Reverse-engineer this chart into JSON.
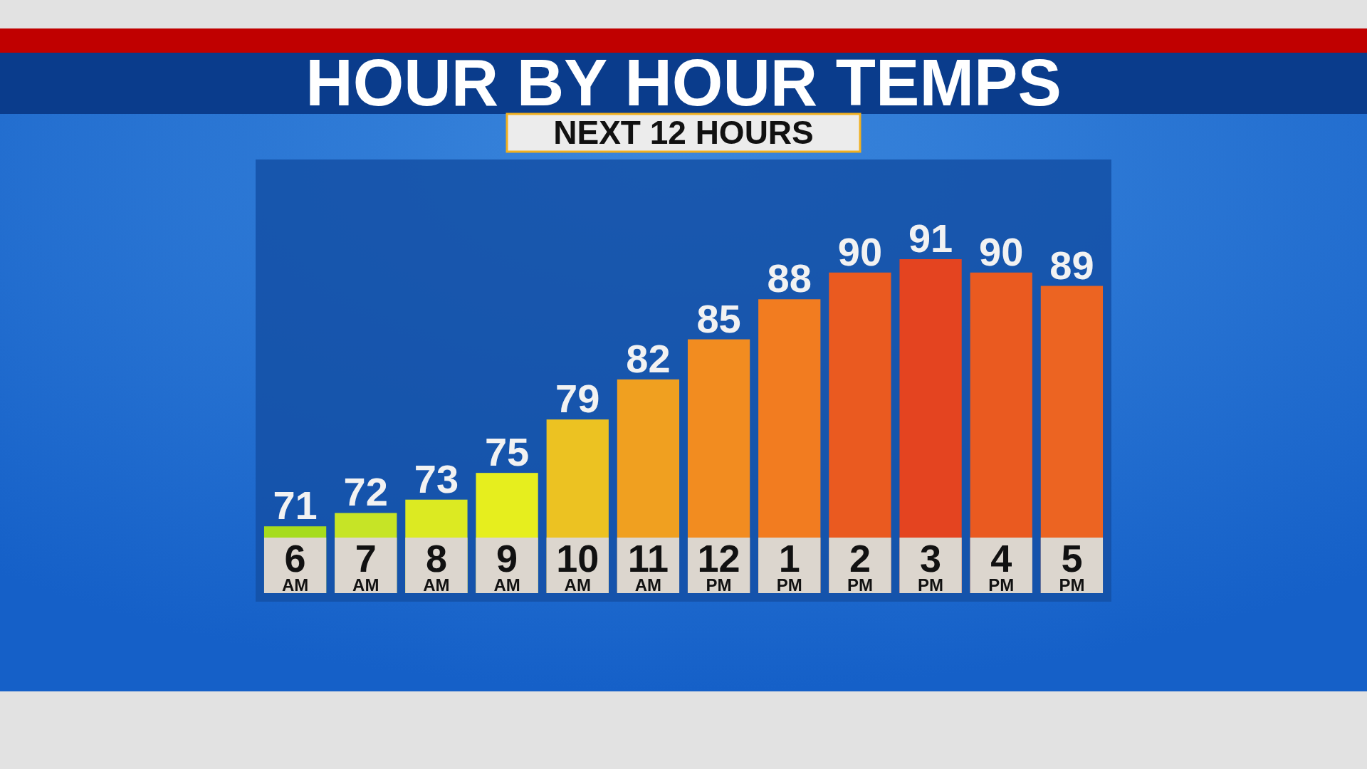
{
  "chart_data": {
    "type": "bar",
    "title": "HOUR BY HOUR TEMPS",
    "subtitle": "NEXT 12 HOURS",
    "categories": [
      "6 AM",
      "7 AM",
      "8 AM",
      "9 AM",
      "10 AM",
      "11 AM",
      "12 PM",
      "1 PM",
      "2 PM",
      "3 PM",
      "4 PM",
      "5 PM"
    ],
    "values": [
      71,
      72,
      73,
      75,
      79,
      82,
      85,
      88,
      90,
      91,
      90,
      89
    ],
    "colors": [
      "#a6dc1e",
      "#c6e426",
      "#dcea22",
      "#e6ee1e",
      "#ecc222",
      "#f0a020",
      "#f28c20",
      "#f27c20",
      "#ea5a20",
      "#e44420",
      "#ea5a20",
      "#ec6422"
    ],
    "ylim": [
      66,
      91
    ],
    "data_labels": true,
    "tick_labels": "x"
  }
}
